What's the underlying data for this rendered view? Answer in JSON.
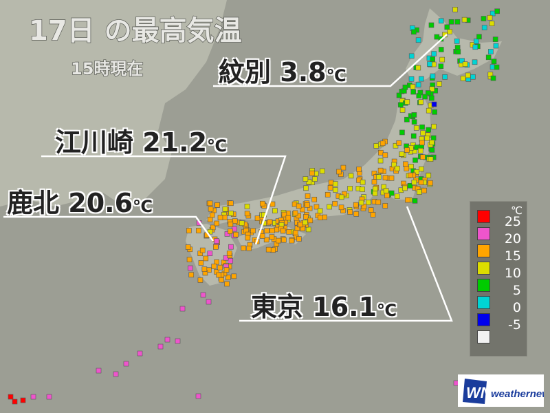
{
  "title": "17日 の最高気温",
  "subtitle": "15時現在",
  "callouts": [
    {
      "place": "紋別",
      "value": "3.8",
      "unit": "℃"
    },
    {
      "place": "江川崎",
      "value": "21.2",
      "unit": "℃"
    },
    {
      "place": "鹿北",
      "value": "20.6",
      "unit": "℃"
    },
    {
      "place": "東京",
      "value": "16.1",
      "unit": "℃"
    }
  ],
  "legend": {
    "unit": "℃",
    "items": [
      {
        "label": "25",
        "color": "#ff0000"
      },
      {
        "label": "20",
        "color": "#ee55cc"
      },
      {
        "label": "15",
        "color": "#ffa500"
      },
      {
        "label": "10",
        "color": "#dddd00"
      },
      {
        "label": "5",
        "color": "#00cc00"
      },
      {
        "label": "0",
        "color": "#00d4d4"
      },
      {
        "label": "-5",
        "color": "#0000ee"
      },
      {
        "label": "",
        "color": "#f2f2f2"
      }
    ]
  },
  "logo": {
    "brand": "weathernews",
    "mark": "WN",
    "color": "#1a3c9c"
  }
}
